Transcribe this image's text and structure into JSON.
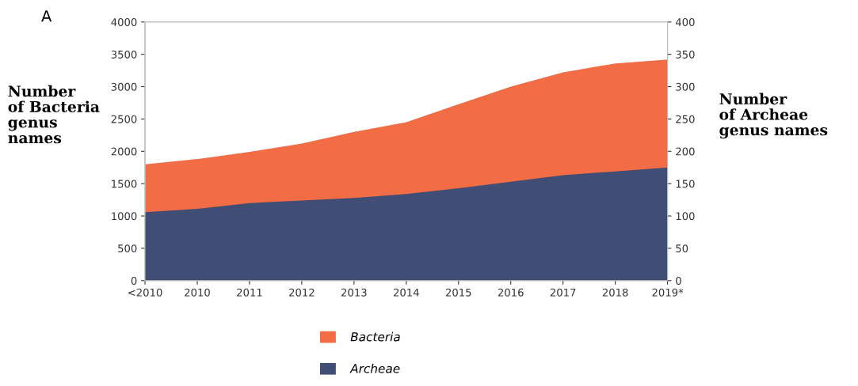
{
  "chart_data": {
    "type": "area",
    "categories": [
      "<2010",
      "2010",
      "2011",
      "2012",
      "2013",
      "2014",
      "2015",
      "2016",
      "2017",
      "2018",
      "2019*"
    ],
    "series": [
      {
        "name": "Bacteria",
        "color": "#f26d45",
        "values": [
          1800,
          1880,
          1990,
          2120,
          2300,
          2450,
          2730,
          3000,
          3220,
          3360,
          3420
        ]
      },
      {
        "name": "Archeae",
        "color": "#404e76",
        "axis": "y2",
        "values": [
          106,
          111,
          120,
          124,
          128,
          134,
          143,
          153,
          163,
          169,
          175
        ]
      }
    ],
    "ylabel": "Number\nof Bacteria\ngenus\nnames",
    "y2label": "Number\nof Archeae\ngenus names",
    "annotations": [
      "A"
    ],
    "ylim": [
      0,
      4000
    ],
    "yticks": [
      0,
      500,
      1000,
      1500,
      2000,
      2500,
      3000,
      3500,
      4000
    ],
    "y2lim": [
      0,
      400
    ],
    "y2ticks": [
      0,
      50,
      100,
      150,
      200,
      250,
      300,
      350,
      400
    ],
    "grid": false,
    "legend": "bottom"
  }
}
